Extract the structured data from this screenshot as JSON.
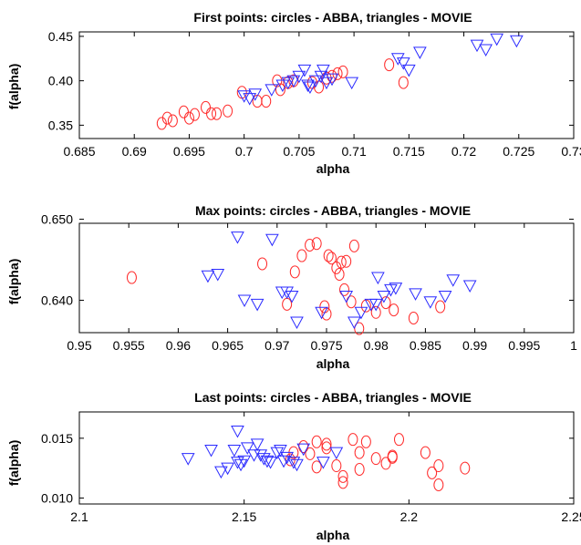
{
  "colors": {
    "abba": "#ff2a2a",
    "movie": "#2a2aff",
    "axis": "#000000"
  },
  "chart_data": [
    {
      "type": "scatter",
      "title": "First points: circles - ABBA, triangles - MOVIE",
      "xlabel": "alpha",
      "ylabel": "f(alpha)",
      "xlim": [
        0.685,
        0.73
      ],
      "ylim": [
        0.335,
        0.455
      ],
      "xticks": [
        0.685,
        0.69,
        0.695,
        0.7,
        0.705,
        0.71,
        0.715,
        0.72,
        0.725,
        0.73
      ],
      "xtick_labels": [
        "0.685",
        "0.69",
        "0.695",
        "0.7",
        "0.705",
        "0.71",
        "0.715",
        "0.72",
        "0.725",
        "0.73"
      ],
      "yticks": [
        0.35,
        0.4,
        0.45
      ],
      "ytick_labels": [
        "0.35",
        "0.40",
        "0.45"
      ],
      "series": [
        {
          "marker": "circle",
          "color": "#ff2a2a",
          "x": [
            0.6925,
            0.693,
            0.6935,
            0.6945,
            0.695,
            0.6955,
            0.6965,
            0.697,
            0.6975,
            0.6985,
            0.6998,
            0.7012,
            0.702,
            0.703,
            0.7033,
            0.704,
            0.7045,
            0.7062,
            0.7068,
            0.7075,
            0.708,
            0.7085,
            0.709,
            0.7132,
            0.7145
          ],
          "y": [
            0.352,
            0.358,
            0.355,
            0.365,
            0.358,
            0.362,
            0.37,
            0.363,
            0.363,
            0.366,
            0.387,
            0.377,
            0.377,
            0.4,
            0.39,
            0.398,
            0.4,
            0.398,
            0.393,
            0.403,
            0.405,
            0.408,
            0.41,
            0.418,
            0.398
          ]
        },
        {
          "marker": "triangle-down",
          "color": "#2a2aff",
          "x": [
            0.7,
            0.7005,
            0.701,
            0.7025,
            0.7035,
            0.704,
            0.7045,
            0.705,
            0.7055,
            0.7058,
            0.706,
            0.7065,
            0.707,
            0.7072,
            0.7075,
            0.708,
            0.7098,
            0.714,
            0.7145,
            0.715,
            0.716,
            0.7212,
            0.722,
            0.723,
            0.7248
          ],
          "y": [
            0.383,
            0.38,
            0.385,
            0.39,
            0.395,
            0.398,
            0.4,
            0.405,
            0.412,
            0.395,
            0.393,
            0.4,
            0.405,
            0.412,
            0.398,
            0.402,
            0.398,
            0.425,
            0.42,
            0.412,
            0.432,
            0.44,
            0.435,
            0.447,
            0.445
          ]
        }
      ]
    },
    {
      "type": "scatter",
      "title": "Max points: circles - ABBA, triangles - MOVIE",
      "xlabel": "alpha",
      "ylabel": "f(alpha)",
      "xlim": [
        0.95,
        1.0
      ],
      "ylim": [
        0.636,
        0.6495
      ],
      "xticks": [
        0.95,
        0.955,
        0.96,
        0.965,
        0.97,
        0.975,
        0.98,
        0.985,
        0.99,
        0.995,
        1.0
      ],
      "xtick_labels": [
        "0.95",
        "0.955",
        "0.96",
        "0.965",
        "0.97",
        "0.975",
        "0.98",
        "0.985",
        "0.99",
        "0.995",
        "1"
      ],
      "yticks": [
        0.64,
        0.65
      ],
      "ytick_labels": [
        "0.640",
        "0.650"
      ],
      "series": [
        {
          "marker": "circle",
          "color": "#ff2a2a",
          "x": [
            0.9553,
            0.9685,
            0.971,
            0.9718,
            0.9725,
            0.9733,
            0.974,
            0.9748,
            0.975,
            0.9752,
            0.9755,
            0.976,
            0.9763,
            0.9765,
            0.9768,
            0.977,
            0.9775,
            0.9778,
            0.9783,
            0.979,
            0.98,
            0.981,
            0.9818,
            0.9838,
            0.9865
          ],
          "y": [
            0.6428,
            0.6445,
            0.6395,
            0.6435,
            0.6455,
            0.6468,
            0.647,
            0.6392,
            0.6383,
            0.6455,
            0.6452,
            0.644,
            0.6432,
            0.6447,
            0.6413,
            0.6448,
            0.6398,
            0.6467,
            0.6365,
            0.6393,
            0.6385,
            0.6397,
            0.6388,
            0.6378,
            0.6392
          ]
        },
        {
          "marker": "triangle-down",
          "color": "#2a2aff",
          "x": [
            0.963,
            0.964,
            0.966,
            0.9667,
            0.968,
            0.9695,
            0.9705,
            0.971,
            0.9715,
            0.972,
            0.9745,
            0.977,
            0.9778,
            0.9785,
            0.9795,
            0.98,
            0.9802,
            0.9808,
            0.9815,
            0.982,
            0.984,
            0.9855,
            0.987,
            0.9878,
            0.9895
          ],
          "y": [
            0.643,
            0.6432,
            0.6478,
            0.64,
            0.6395,
            0.6475,
            0.641,
            0.641,
            0.6405,
            0.6373,
            0.6385,
            0.6405,
            0.6373,
            0.6385,
            0.6395,
            0.6395,
            0.6428,
            0.6405,
            0.6413,
            0.6415,
            0.6408,
            0.6398,
            0.6405,
            0.6425,
            0.6418
          ]
        }
      ]
    },
    {
      "type": "scatter",
      "title": "Last points: circles - ABBA, triangles - MOVIE",
      "xlabel": "alpha",
      "ylabel": "f(alpha)",
      "xlim": [
        2.1,
        2.25
      ],
      "ylim": [
        0.0095,
        0.0172
      ],
      "xticks": [
        2.1,
        2.15,
        2.2,
        2.25
      ],
      "xtick_labels": [
        "2.1",
        "2.15",
        "2.2",
        "2.25"
      ],
      "yticks": [
        0.01,
        0.015
      ],
      "ytick_labels": [
        "0.010",
        "0.015"
      ],
      "series": [
        {
          "marker": "circle",
          "color": "#ff2a2a",
          "x": [
            2.165,
            2.168,
            2.17,
            2.172,
            2.175,
            2.178,
            2.18,
            2.18,
            2.183,
            2.185,
            2.187,
            2.19,
            2.193,
            2.195,
            2.195,
            2.197,
            2.205,
            2.207,
            2.209,
            2.209,
            2.217,
            2.172,
            2.175,
            2.185,
            2.164
          ],
          "y": [
            0.0138,
            0.0143,
            0.0137,
            0.0147,
            0.0142,
            0.0127,
            0.0118,
            0.0113,
            0.0149,
            0.0138,
            0.0147,
            0.0133,
            0.0129,
            0.0135,
            0.0134,
            0.0149,
            0.0138,
            0.0121,
            0.0127,
            0.0111,
            0.0125,
            0.0126,
            0.0145,
            0.0124,
            0.0132
          ]
        },
        {
          "marker": "triangle-down",
          "color": "#2a2aff",
          "x": [
            2.133,
            2.14,
            2.143,
            2.145,
            2.147,
            2.148,
            2.148,
            2.149,
            2.15,
            2.151,
            2.153,
            2.154,
            2.155,
            2.156,
            2.157,
            2.158,
            2.16,
            2.161,
            2.162,
            2.163,
            2.165,
            2.166,
            2.168,
            2.174,
            2.178
          ],
          "y": [
            0.0133,
            0.014,
            0.0122,
            0.0125,
            0.014,
            0.0156,
            0.013,
            0.0128,
            0.0131,
            0.0142,
            0.0136,
            0.0145,
            0.0136,
            0.0133,
            0.0131,
            0.013,
            0.0138,
            0.014,
            0.0131,
            0.0134,
            0.013,
            0.0128,
            0.0141,
            0.013,
            0.0138
          ]
        }
      ]
    }
  ]
}
